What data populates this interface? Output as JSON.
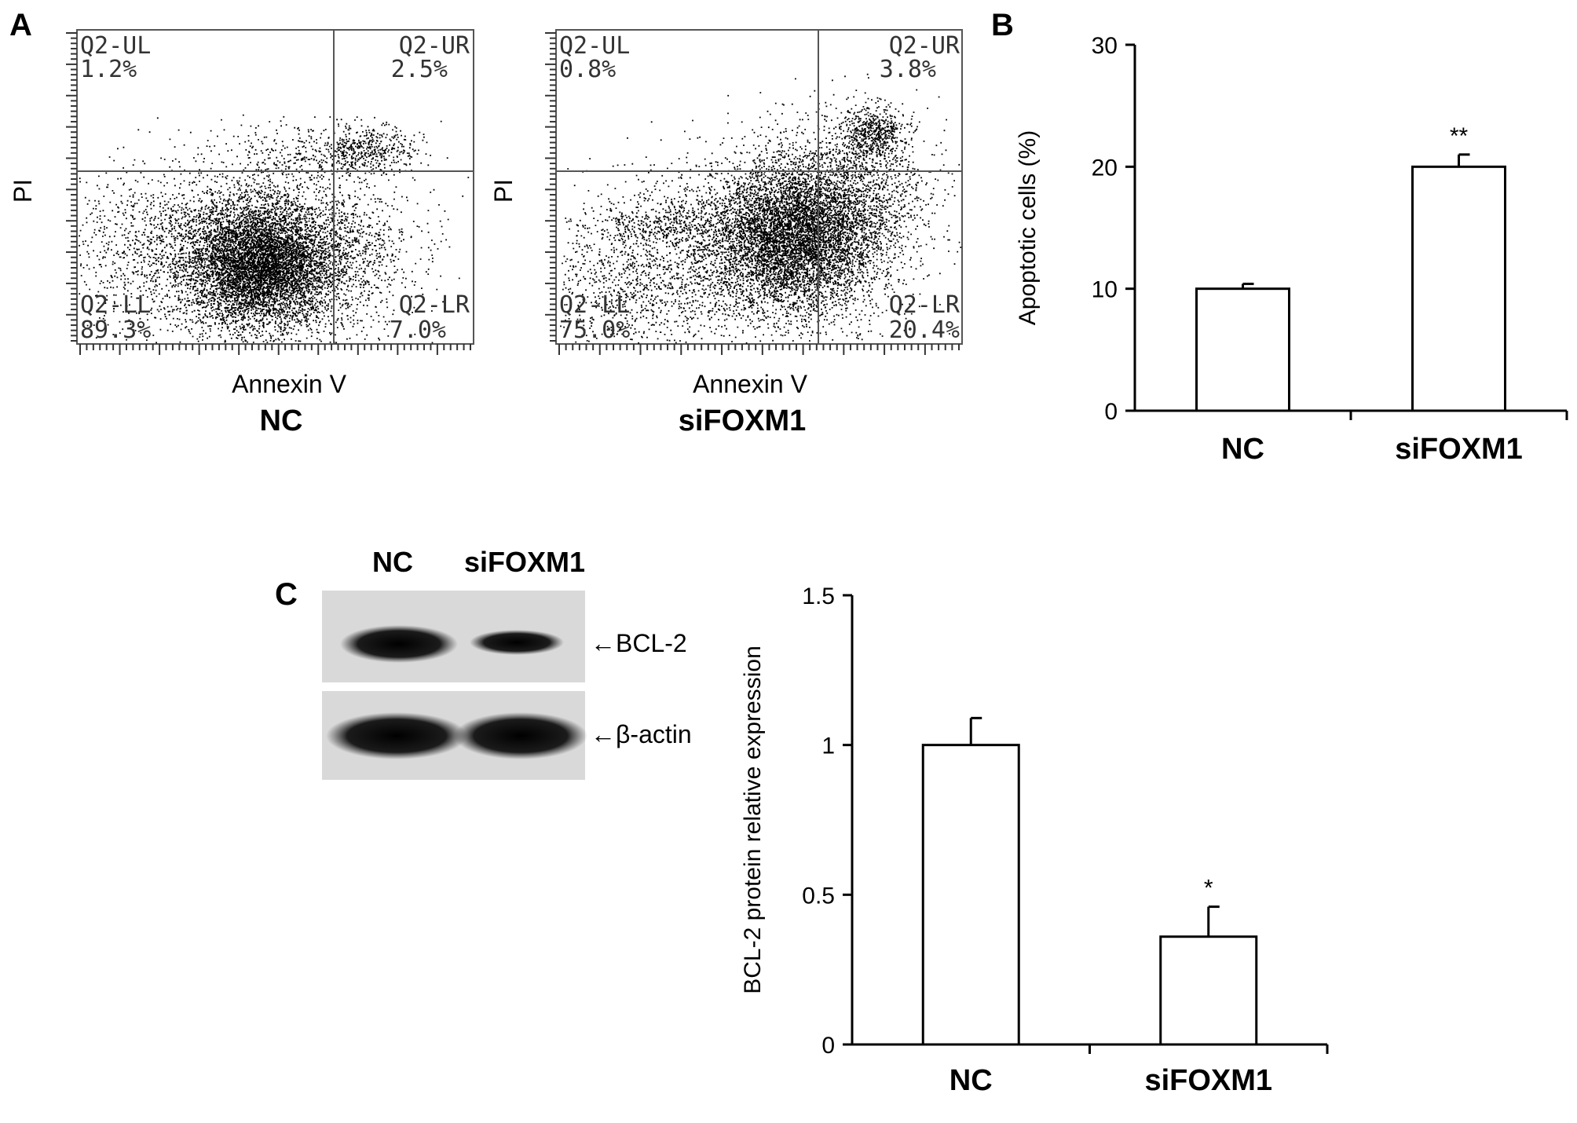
{
  "panels": {
    "a": "A",
    "b": "B",
    "c": "C"
  },
  "flow": [
    {
      "xlabel": "Annexin V",
      "ylabel": "PI",
      "sample": "NC",
      "quadrants": {
        "ul": {
          "name": "Q2-UL",
          "value": "1.2%"
        },
        "ur": {
          "name": "Q2-UR",
          "value": "2.5%"
        },
        "ll": {
          "name": "Q2-LL",
          "value": "89.3%"
        },
        "lr": {
          "name": "Q2-LR",
          "value": "7.0%"
        }
      }
    },
    {
      "xlabel": "Annexin V",
      "ylabel": "PI",
      "sample": "siFOXM1",
      "quadrants": {
        "ul": {
          "name": "Q2-UL",
          "value": "0.8%"
        },
        "ur": {
          "name": "Q2-UR",
          "value": "3.8%"
        },
        "ll": {
          "name": "Q2-LL",
          "value": "75.0%"
        },
        "lr": {
          "name": "Q2-LR",
          "value": "20.4%"
        }
      }
    }
  ],
  "western": {
    "lanes": [
      "NC",
      "siFOXM1"
    ],
    "bands": [
      "←BCL-2",
      "←β-actin"
    ],
    "bcl2_intensity": [
      1.0,
      0.45
    ],
    "actin_intensity": [
      1.0,
      1.0
    ]
  },
  "chart_data": [
    {
      "type": "bar",
      "categories": [
        "NC",
        "siFOXM1"
      ],
      "values": [
        10.0,
        20.0
      ],
      "errors": [
        0.4,
        1.0
      ],
      "significance": [
        "",
        "**"
      ],
      "ylabel": "Apoptotic cells (%)",
      "ylim": [
        0,
        30
      ],
      "yticks": [
        "0",
        "10",
        "20",
        "30"
      ]
    },
    {
      "type": "bar",
      "categories": [
        "NC",
        "siFOXM1"
      ],
      "values": [
        1.0,
        0.36
      ],
      "errors": [
        0.09,
        0.1
      ],
      "significance": [
        "",
        "*"
      ],
      "ylabel": "BCL-2 protein relative expression",
      "ylim": [
        0,
        1.5
      ],
      "yticks": [
        "0",
        "0.5",
        "1",
        "1.5"
      ]
    }
  ]
}
